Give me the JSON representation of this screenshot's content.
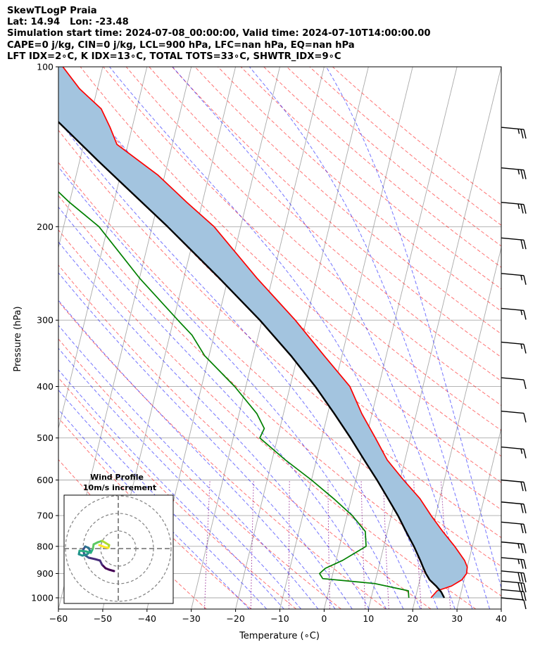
{
  "header": {
    "lines": [
      "SkewTLogP Praia",
      "Lat: 14.94   Lon: -23.48",
      "Simulation start time: 2024-07-08_00:00:00, Valid time: 2024-07-10T14:00:00.00",
      "CAPE=0 j/kg, CIN=0 j/kg, LCL=900 hPa, LFC=nan hPa, EQ=nan hPa",
      "LFT IDX=2∘C, K IDX=13∘C, TOTAL TOTS=33∘C, SHWTR_IDX=9∘C"
    ]
  },
  "chart_data": {
    "type": "skew-t",
    "xlabel": "Temperature (∘C)",
    "ylabel": "Pressure (hPa)",
    "xlim": [
      -60,
      40
    ],
    "ylim": [
      1050,
      100
    ],
    "y_scale": "log",
    "grid": true,
    "x_ticks": [
      -60,
      -50,
      -40,
      -30,
      -20,
      -10,
      0,
      10,
      20,
      30,
      40
    ],
    "y_ticks": [
      1000,
      900,
      800,
      700,
      600,
      500,
      400,
      300,
      200,
      100
    ],
    "series": [
      {
        "kind": "temperature",
        "color": "#ff0000",
        "pressure": [
          1000,
          970,
          950,
          925,
          900,
          875,
          850,
          800,
          750,
          700,
          650,
          600,
          550,
          500,
          450,
          400,
          350,
          300,
          250,
          200,
          180,
          160,
          140,
          130,
          120,
          110,
          100
        ],
        "values": [
          23.5,
          24.5,
          27.5,
          29.5,
          30.2,
          30.0,
          29.0,
          26.0,
          22.5,
          19.0,
          15.5,
          10.8,
          6.0,
          2.1,
          -2.3,
          -6.5,
          -14.0,
          -22.5,
          -33.5,
          -46.0,
          -53.5,
          -61.5,
          -72.5,
          -75.0,
          -78.0,
          -84.0,
          -89.0
        ]
      },
      {
        "kind": "dewpoint",
        "color": "#008000",
        "pressure": [
          1000,
          970,
          940,
          920,
          900,
          880,
          850,
          800,
          750,
          700,
          650,
          600,
          550,
          500,
          480,
          450,
          400,
          350,
          320,
          300,
          250,
          200,
          180,
          160,
          140,
          130,
          120,
          110,
          100
        ],
        "values": [
          18.5,
          18.0,
          10.0,
          -2.0,
          -3.0,
          -2.0,
          1.5,
          6.0,
          5.0,
          1.2,
          -4.0,
          -10.0,
          -17.0,
          -24.0,
          -23.5,
          -26.0,
          -32.5,
          -41.0,
          -45.0,
          -49.0,
          -60.0,
          -72.0,
          -80.0,
          -88.0,
          -101.0,
          -105.0,
          -108.5,
          -112.0,
          -117.0
        ]
      },
      {
        "kind": "parcel",
        "color": "#000000",
        "pressure": [
          1000,
          975,
          950,
          925,
          900,
          875,
          850,
          800,
          750,
          700,
          650,
          600,
          550,
          500,
          450,
          400,
          350,
          300,
          250,
          200,
          150,
          125,
          100
        ],
        "values": [
          26.5,
          25.5,
          24.0,
          22.2,
          21.0,
          20.0,
          19.0,
          16.8,
          14.2,
          11.5,
          8.3,
          4.8,
          0.8,
          -3.5,
          -8.5,
          -14.3,
          -21.5,
          -30.5,
          -42.0,
          -56.5,
          -76.0,
          -88.0,
          -101.5
        ]
      }
    ],
    "shading": {
      "label": "CAPE/CIN area",
      "color": "#a3c4df"
    },
    "wind_barbs": {
      "pressures": [
        130,
        155,
        180,
        210,
        245,
        285,
        330,
        385,
        445,
        520,
        600,
        660,
        720,
        785,
        840,
        890,
        930,
        965,
        1000
      ],
      "speed_kt": [
        25,
        25,
        25,
        20,
        15,
        15,
        15,
        10,
        10,
        15,
        20,
        20,
        20,
        25,
        25,
        30,
        30,
        20,
        10
      ]
    },
    "hodograph": {
      "title": "Wind Profile",
      "subtitle": "10m/s increment",
      "colormap": "viridis"
    },
    "reference_lines": {
      "dry_adiabats_color": "#ff0000",
      "moist_adiabats_color": "#0000ff",
      "mixing_ratio_color": "#800080",
      "isotherms_color": "#808080"
    }
  }
}
